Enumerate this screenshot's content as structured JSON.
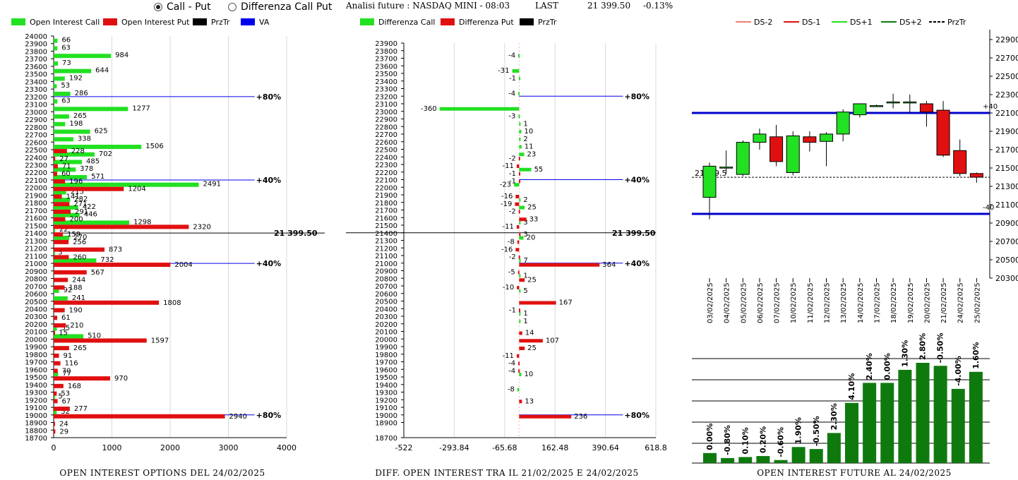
{
  "header": {
    "radio_options": [
      {
        "label": "Call - Put",
        "selected": true
      },
      {
        "label": "Differenza Call Put",
        "selected": false
      }
    ],
    "analysis_label": "Analisi future : NASDAQ MINI - 08:03",
    "last_label": "LAST",
    "last_value": "21 399.50",
    "last_change": "-0.13%"
  },
  "colors": {
    "call": "#22e022",
    "put": "#e01010",
    "przTr": "#000000",
    "va": "#0000ee",
    "dsm2": "#f08070",
    "dsm1": "#e01010",
    "dsp1": "#22e022",
    "dsp2": "#0a7a0a",
    "bar_green": "#0e7a0e",
    "band": "#0000cc"
  },
  "chart_data": [
    {
      "type": "bar",
      "title": "OPEN INTEREST OPTIONS DEL 24/02/2025",
      "orientation": "horizontal",
      "legend": [
        "Open Interest Call",
        "Open Interest Put",
        "PrzTr",
        "VA"
      ],
      "legend_placement": "top",
      "strikes": [
        24000,
        23900,
        23800,
        23700,
        23600,
        23500,
        23400,
        23300,
        23200,
        23100,
        23000,
        22900,
        22800,
        22700,
        22600,
        22500,
        22400,
        22300,
        22200,
        22100,
        22000,
        21900,
        21800,
        21700,
        21600,
        21500,
        21400,
        21300,
        21200,
        21100,
        21000,
        20900,
        20800,
        20700,
        20600,
        20500,
        20400,
        20300,
        20200,
        20100,
        20000,
        19900,
        19800,
        19700,
        19600,
        19500,
        19400,
        19300,
        19200,
        19100,
        19000,
        18900,
        18800,
        18700
      ],
      "call_values": [
        {
          "strike": 23900,
          "value": 66
        },
        {
          "strike": 23800,
          "value": 63
        },
        {
          "strike": 23700,
          "value": 984
        },
        {
          "strike": 23600,
          "value": 73
        },
        {
          "strike": 23500,
          "value": 644
        },
        {
          "strike": 23400,
          "value": 192
        },
        {
          "strike": 23300,
          "value": 53
        },
        {
          "strike": 23200,
          "value": 286
        },
        {
          "strike": 23100,
          "value": 63
        },
        {
          "strike": 23000,
          "value": 1277
        },
        {
          "strike": 22900,
          "value": 265
        },
        {
          "strike": 22800,
          "value": 198
        },
        {
          "strike": 22700,
          "value": 625
        },
        {
          "strike": 22600,
          "value": 338
        },
        {
          "strike": 22500,
          "value": 1506
        },
        {
          "strike": 22400,
          "value": 702
        },
        {
          "strike": 22300,
          "value": 485
        },
        {
          "strike": 22200,
          "value": 378
        },
        {
          "strike": 22100,
          "value": 571
        },
        {
          "strike": 22000,
          "value": 2491
        },
        {
          "strike": 21900,
          "value": 215
        },
        {
          "strike": 21800,
          "value": 282
        },
        {
          "strike": 21700,
          "value": 422
        },
        {
          "strike": 21600,
          "value": 446
        },
        {
          "strike": 21500,
          "value": 1298
        },
        {
          "strike": 21400,
          "value": 22
        },
        {
          "strike": 21300,
          "value": 270
        },
        {
          "strike": 21100,
          "value": 3
        },
        {
          "strike": 21000,
          "value": 732
        },
        {
          "strike": 20600,
          "value": 92
        },
        {
          "strike": 20500,
          "value": 241
        },
        {
          "strike": 20100,
          "value": 55
        },
        {
          "strike": 20000,
          "value": 510
        },
        {
          "strike": 19500,
          "value": 77
        },
        {
          "strike": 19200,
          "value": 5
        },
        {
          "strike": 19000,
          "value": 52
        }
      ],
      "put_values": [
        {
          "strike": 22500,
          "value": 228
        },
        {
          "strike": 22400,
          "value": 27
        },
        {
          "strike": 22300,
          "value": 71
        },
        {
          "strike": 22200,
          "value": 60
        },
        {
          "strike": 22100,
          "value": 196
        },
        {
          "strike": 22000,
          "value": 1204
        },
        {
          "strike": 21900,
          "value": 141
        },
        {
          "strike": 21800,
          "value": 271
        },
        {
          "strike": 21700,
          "value": 291
        },
        {
          "strike": 21600,
          "value": 200
        },
        {
          "strike": 21500,
          "value": 2320
        },
        {
          "strike": 21400,
          "value": 159
        },
        {
          "strike": 21300,
          "value": 256
        },
        {
          "strike": 21200,
          "value": 873
        },
        {
          "strike": 21100,
          "value": 260
        },
        {
          "strike": 21000,
          "value": 2004
        },
        {
          "strike": 20900,
          "value": 567
        },
        {
          "strike": 20800,
          "value": 244
        },
        {
          "strike": 20700,
          "value": 188
        },
        {
          "strike": 20500,
          "value": 1808
        },
        {
          "strike": 20400,
          "value": 190
        },
        {
          "strike": 20300,
          "value": 61
        },
        {
          "strike": 20200,
          "value": 210
        },
        {
          "strike": 20100,
          "value": 15
        },
        {
          "strike": 20000,
          "value": 1597
        },
        {
          "strike": 19900,
          "value": 265
        },
        {
          "strike": 19800,
          "value": 91
        },
        {
          "strike": 19700,
          "value": 116
        },
        {
          "strike": 19600,
          "value": 70
        },
        {
          "strike": 19500,
          "value": 970
        },
        {
          "strike": 19400,
          "value": 168
        },
        {
          "strike": 19300,
          "value": 53
        },
        {
          "strike": 19200,
          "value": 67
        },
        {
          "strike": 19100,
          "value": 277
        },
        {
          "strike": 19000,
          "value": 2940
        },
        {
          "strike": 18900,
          "value": 24
        },
        {
          "strike": 18800,
          "value": 29
        }
      ],
      "xlim": [
        0,
        4000
      ],
      "xticks": [
        0,
        1000,
        2000,
        3000,
        4000
      ],
      "price_line": {
        "strike": 21400,
        "label": "21 399.50"
      },
      "va_lines": [
        {
          "strike": 23200,
          "label": "80%"
        },
        {
          "strike": 22100,
          "label": "40%"
        },
        {
          "strike": 21000,
          "label": "40%"
        },
        {
          "strike": 19000,
          "label": "80%"
        }
      ]
    },
    {
      "type": "bar",
      "title": "DIFF. OPEN INTEREST TRA IL 21/02/2025 E 24/02/2025",
      "orientation": "horizontal",
      "legend": [
        "Differenza Call",
        "Differenza Put",
        "PrzTr"
      ],
      "legend_placement": "top",
      "strikes": [
        23900,
        23800,
        23700,
        23600,
        23500,
        23400,
        23300,
        23200,
        23100,
        23000,
        22900,
        22800,
        22700,
        22600,
        22500,
        22400,
        22300,
        22200,
        22100,
        22000,
        21900,
        21800,
        21700,
        21600,
        21500,
        21400,
        21300,
        21200,
        21100,
        21000,
        20900,
        20800,
        20700,
        20600,
        20500,
        20400,
        20300,
        20200,
        20100,
        20000,
        19900,
        19800,
        19700,
        19600,
        19500,
        19400,
        19300,
        19200,
        19100,
        19000,
        18900,
        18700
      ],
      "call_values": [
        {
          "strike": 23700,
          "value": -4
        },
        {
          "strike": 23500,
          "value": -31
        },
        {
          "strike": 23400,
          "value": -1
        },
        {
          "strike": 23200,
          "value": -4
        },
        {
          "strike": 23000,
          "value": -360
        },
        {
          "strike": 22900,
          "value": -3
        },
        {
          "strike": 22800,
          "value": 1
        },
        {
          "strike": 22700,
          "value": 10
        },
        {
          "strike": 22600,
          "value": 2
        },
        {
          "strike": 22500,
          "value": 11
        },
        {
          "strike": 22400,
          "value": 23
        },
        {
          "strike": 22200,
          "value": 55
        },
        {
          "strike": 22000,
          "value": -23
        },
        {
          "strike": 21800,
          "value": 2
        },
        {
          "strike": 21700,
          "value": 25
        },
        {
          "strike": 21500,
          "value": 3
        },
        {
          "strike": 21300,
          "value": 20
        },
        {
          "strike": 21000,
          "value": 7
        },
        {
          "strike": 20800,
          "value": 1
        },
        {
          "strike": 20600,
          "value": 5
        },
        {
          "strike": 20300,
          "value": 1
        },
        {
          "strike": 20200,
          "value": 1
        },
        {
          "strike": 19500,
          "value": 10
        },
        {
          "strike": 19300,
          "value": -8
        }
      ],
      "put_values": [
        {
          "strike": 22400,
          "value": -2
        },
        {
          "strike": 22300,
          "value": -11
        },
        {
          "strike": 22200,
          "value": -1
        },
        {
          "strike": 22100,
          "value": -1
        },
        {
          "strike": 21900,
          "value": -16
        },
        {
          "strike": 21800,
          "value": -19
        },
        {
          "strike": 21700,
          "value": -2
        },
        {
          "strike": 21600,
          "value": 33
        },
        {
          "strike": 21500,
          "value": -11
        },
        {
          "strike": 21400,
          "value": 3
        },
        {
          "strike": 21300,
          "value": -8
        },
        {
          "strike": 21200,
          "value": -16
        },
        {
          "strike": 21100,
          "value": -2
        },
        {
          "strike": 21000,
          "value": 364
        },
        {
          "strike": 20900,
          "value": -5
        },
        {
          "strike": 20800,
          "value": 25
        },
        {
          "strike": 20700,
          "value": -10
        },
        {
          "strike": 20500,
          "value": 167
        },
        {
          "strike": 20400,
          "value": -1
        },
        {
          "strike": 20100,
          "value": 14
        },
        {
          "strike": 20000,
          "value": 107
        },
        {
          "strike": 19900,
          "value": 25
        },
        {
          "strike": 19800,
          "value": -11
        },
        {
          "strike": 19700,
          "value": -4
        },
        {
          "strike": 19600,
          "value": -4
        },
        {
          "strike": 19200,
          "value": 13
        },
        {
          "strike": 19000,
          "value": 236
        }
      ],
      "xlim": [
        -522,
        618.8
      ],
      "xticks": [
        -522,
        -293.84,
        -65.68,
        162.48,
        390.64,
        618.8
      ],
      "price_line": {
        "strike": 21400,
        "label": "21 399.50"
      },
      "va_lines": [
        {
          "strike": 23200,
          "label": "80%"
        },
        {
          "strike": 22100,
          "label": "40%"
        },
        {
          "strike": 21000,
          "label": "40%"
        },
        {
          "strike": 19000,
          "label": "80%"
        }
      ]
    },
    {
      "type": "candlestick",
      "legend": [
        "DS-2",
        "DS-1",
        "DS+1",
        "DS+2",
        "PrzTr"
      ],
      "legend_placement": "top",
      "dates": [
        "03/02/2025",
        "04/02/2025",
        "05/02/2025",
        "06/02/2025",
        "07/02/2025",
        "10/02/2025",
        "11/02/2025",
        "12/02/2025",
        "13/02/2025",
        "14/02/2025",
        "17/02/2025",
        "18/02/2025",
        "19/02/2025",
        "20/02/2025",
        "21/02/2025",
        "24/02/2025",
        "25/02/2025"
      ],
      "ohlc": [
        [
          21180,
          21560,
          20940,
          21520
        ],
        [
          21500,
          21690,
          21440,
          21510
        ],
        [
          21430,
          21800,
          21410,
          21780
        ],
        [
          21780,
          21930,
          21700,
          21870
        ],
        [
          21840,
          21970,
          21520,
          21570
        ],
        [
          21450,
          21900,
          21420,
          21850
        ],
        [
          21840,
          21900,
          21680,
          21780
        ],
        [
          21790,
          21890,
          21520,
          21870
        ],
        [
          21870,
          22140,
          21790,
          22110
        ],
        [
          22080,
          22200,
          22050,
          22200
        ],
        [
          22180,
          22190,
          22170,
          22180
        ],
        [
          22210,
          22310,
          22150,
          22220
        ],
        [
          22210,
          22300,
          22100,
          22220
        ],
        [
          22200,
          22230,
          21950,
          22110
        ],
        [
          22130,
          22230,
          21620,
          21640
        ],
        [
          21690,
          21810,
          21410,
          21440
        ],
        [
          21440,
          21450,
          21340,
          21400
        ]
      ],
      "ylim": [
        20300,
        22900
      ],
      "yticks": [
        20300,
        20500,
        20700,
        20900,
        21100,
        21300,
        21500,
        21700,
        21900,
        22100,
        22300,
        22500,
        22700,
        22900
      ],
      "bands": [
        {
          "value": 22100,
          "label": "+40"
        },
        {
          "value": 21000,
          "label": "-40"
        }
      ],
      "przTr": {
        "value": 21399.5,
        "label": "21399.5"
      }
    },
    {
      "type": "bar",
      "title": "OPEN INTEREST FUTURE AL 24/02/2025",
      "categories": [
        "03/02/2025",
        "04/02/2025",
        "05/02/2025",
        "06/02/2025",
        "07/02/2025",
        "10/02/2025",
        "11/02/2025",
        "12/02/2025",
        "13/02/2025",
        "14/02/2025",
        "17/02/2025",
        "18/02/2025",
        "19/02/2025",
        "20/02/2025",
        "21/02/2025",
        "24/02/2025"
      ],
      "values": [
        0.0,
        -0.8,
        0.1,
        0.2,
        -0.6,
        1.9,
        -0.5,
        2.3,
        4.1,
        2.4,
        0.0,
        1.3,
        2.8,
        -0.5,
        -4.0,
        1.6
      ],
      "value_labels": [
        "0.00%",
        "-0.80%",
        "0.10%",
        "0.20%",
        "-0.60%",
        "1.90%",
        "-0.50%",
        "2.30%",
        "4.10%",
        "2.40%",
        "0.00%",
        "1.30%",
        "2.80%",
        "-0.50%",
        "-4.00%",
        "1.60%"
      ],
      "relative_heights": [
        0.1,
        0.05,
        0.06,
        0.07,
        0.03,
        0.16,
        0.14,
        0.3,
        0.6,
        0.8,
        0.8,
        0.93,
        1.0,
        0.97,
        0.74,
        0.91
      ]
    }
  ],
  "captions": {
    "left": "OPEN INTEREST OPTIONS DEL 24/02/2025",
    "middle": "DIFF. OPEN INTEREST TRA IL 21/02/2025 E 24/02/2025",
    "right": "OPEN INTEREST FUTURE AL 24/02/2025"
  }
}
